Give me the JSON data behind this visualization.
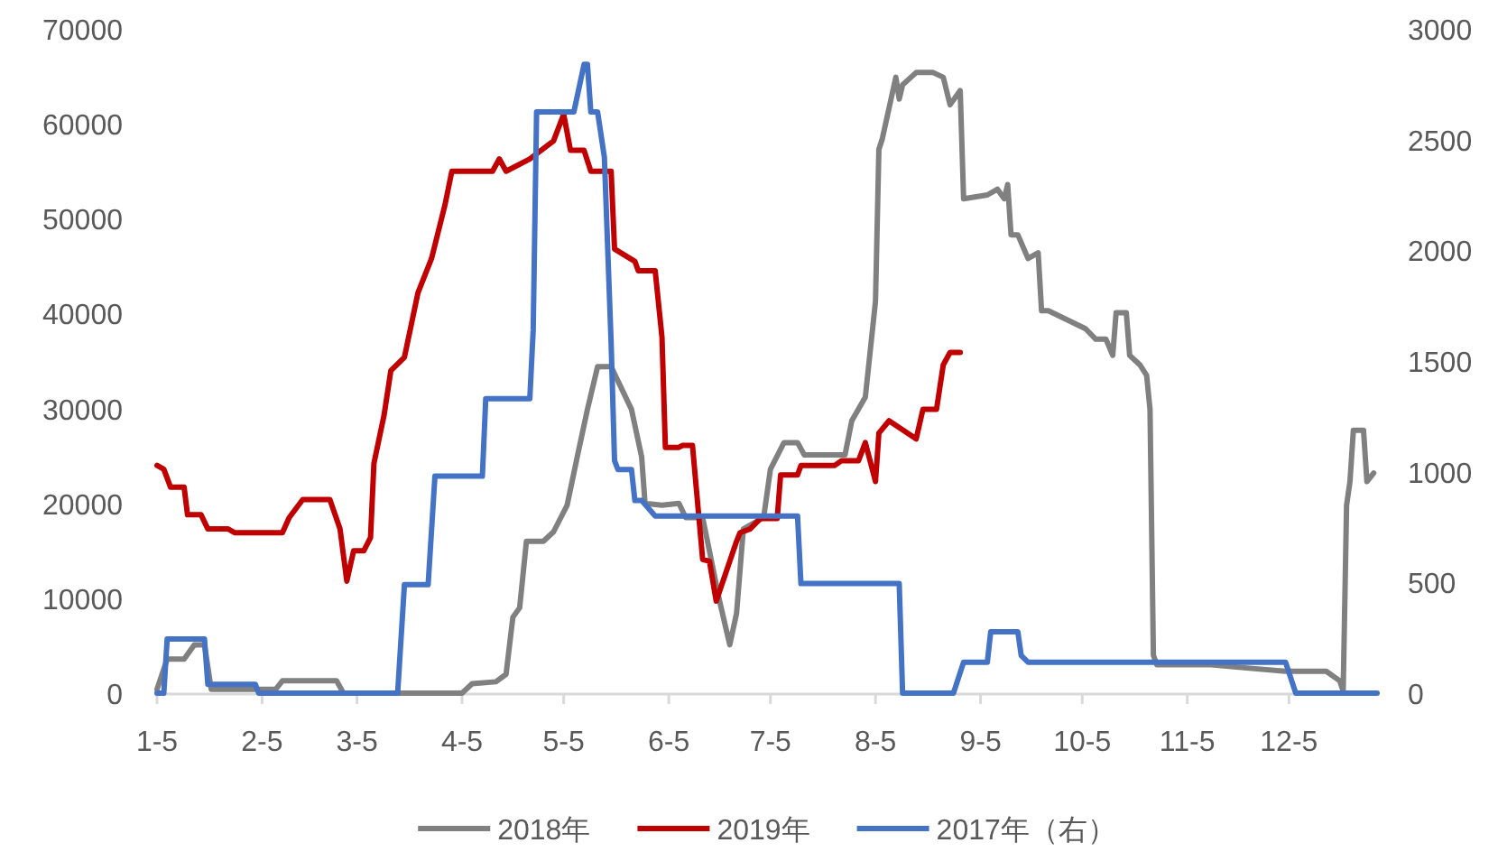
{
  "chart_data": {
    "type": "line",
    "legend": "bottom",
    "grid": false,
    "xlim": [
      "--01-05",
      "--12-31"
    ],
    "xticks": [
      {
        "value": "--01-05",
        "label": "1-5"
      },
      {
        "value": "--02-05",
        "label": "2-5"
      },
      {
        "value": "--03-05",
        "label": "3-5"
      },
      {
        "value": "--04-05",
        "label": "4-5"
      },
      {
        "value": "--05-05",
        "label": "5-5"
      },
      {
        "value": "--06-05",
        "label": "6-5"
      },
      {
        "value": "--07-05",
        "label": "7-5"
      },
      {
        "value": "--08-05",
        "label": "8-5"
      },
      {
        "value": "--09-05",
        "label": "9-5"
      },
      {
        "value": "--10-05",
        "label": "10-5"
      },
      {
        "value": "--11-05",
        "label": "11-5"
      },
      {
        "value": "--12-05",
        "label": "12-5"
      }
    ],
    "ylim": [
      0,
      70000
    ],
    "yticks": [
      0,
      10000,
      20000,
      30000,
      40000,
      50000,
      60000,
      70000
    ],
    "y2lim": [
      0,
      3000
    ],
    "y2ticks": [
      0,
      500,
      1000,
      1500,
      2000,
      2500,
      3000
    ],
    "series": [
      {
        "name": "2018年",
        "color": "#808080",
        "x": [
          "--01-05",
          "--01-08",
          "--01-13",
          "--01-16",
          "--01-19",
          "--01-21",
          "--02-09",
          "--02-11",
          "--02-27",
          "--03-01",
          "--04-05",
          "--04-08",
          "--04-15",
          "--04-18",
          "--04-20",
          "--04-22",
          "--04-24",
          "--04-29",
          "--05-02",
          "--05-06",
          "--05-09",
          "--05-12",
          "--05-15",
          "--05-19",
          "--05-25",
          "--05-28",
          "--05-29",
          "--06-03",
          "--06-08",
          "--06-10",
          "--06-15",
          "--06-20",
          "--06-23",
          "--06-25",
          "--06-27",
          "--07-03",
          "--07-05",
          "--07-09",
          "--07-13",
          "--07-15",
          "--07-27",
          "--07-29",
          "--08-02",
          "--08-05",
          "--08-06",
          "--08-07",
          "--08-11",
          "--08-12",
          "--08-13",
          "--08-17",
          "--08-22",
          "--08-25",
          "--08-27",
          "--08-30",
          "--08-31",
          "--09-07",
          "--09-10",
          "--09-12",
          "--09-13",
          "--09-14",
          "--09-16",
          "--09-19",
          "--09-22",
          "--09-23",
          "--09-25",
          "--10-06",
          "--10-09",
          "--10-12",
          "--10-14",
          "--10-15",
          "--10-18",
          "--10-19",
          "--10-22",
          "--10-24",
          "--10-25",
          "--10-26",
          "--10-27",
          "--11-12",
          "--11-21",
          "--12-04",
          "--12-16",
          "--12-20",
          "--12-21",
          "--12-22",
          "--12-23",
          "--12-24",
          "--12-27",
          "--12-28",
          "--12-30"
        ],
        "values": [
          400,
          3600,
          3600,
          5100,
          5100,
          400,
          400,
          1300,
          1300,
          0,
          0,
          1000,
          1200,
          2000,
          8000,
          9000,
          16000,
          16000,
          17000,
          19800,
          24900,
          29900,
          34400,
          34400,
          29900,
          24900,
          20000,
          19800,
          20000,
          18500,
          18500,
          9700,
          5100,
          8400,
          17300,
          18500,
          23600,
          26400,
          26400,
          25100,
          25100,
          28700,
          31200,
          41300,
          57300,
          58400,
          64900,
          62600,
          64100,
          65400,
          65400,
          64900,
          62000,
          63500,
          52100,
          52500,
          53100,
          52100,
          53600,
          48300,
          48300,
          45800,
          46400,
          40300,
          40300,
          38400,
          37300,
          37300,
          35600,
          40100,
          40100,
          35600,
          34600,
          33500,
          29900,
          4000,
          3000,
          3000,
          2700,
          2300,
          2300,
          1300,
          200,
          19800,
          22300,
          27700,
          27700,
          22300,
          23200
        ]
      },
      {
        "name": "2019年",
        "color": "#c00000",
        "x": [
          "--01-05",
          "--01-07",
          "--01-09",
          "--01-13",
          "--01-14",
          "--01-18",
          "--01-20",
          "--01-26",
          "--01-28",
          "--02-11",
          "--02-13",
          "--02-17",
          "--02-25",
          "--02-28",
          "--03-02",
          "--03-04",
          "--03-07",
          "--03-09",
          "--03-10",
          "--03-13",
          "--03-15",
          "--03-19",
          "--03-23",
          "--03-27",
          "--03-31",
          "--04-02",
          "--04-14",
          "--04-16",
          "--04-18",
          "--04-25",
          "--05-02",
          "--05-05",
          "--05-07",
          "--05-11",
          "--05-13",
          "--05-19",
          "--05-20",
          "--05-26",
          "--05-27",
          "--06-01",
          "--06-03",
          "--06-04",
          "--06-08",
          "--06-09",
          "--06-12",
          "--06-15",
          "--06-17",
          "--06-19",
          "--06-25",
          "--06-26",
          "--06-29",
          "--07-02",
          "--07-07",
          "--07-08",
          "--07-13",
          "--07-14",
          "--07-24",
          "--07-26",
          "--07-31",
          "--08-02",
          "--08-05",
          "--08-06",
          "--08-09",
          "--08-17",
          "--08-19",
          "--08-23",
          "--08-25",
          "--08-27",
          "--08-30"
        ],
        "values": [
          24000,
          23600,
          21700,
          21700,
          18800,
          18800,
          17300,
          17300,
          16900,
          16900,
          18500,
          20400,
          20400,
          17300,
          11800,
          15000,
          15000,
          16400,
          24200,
          29300,
          34000,
          35400,
          42200,
          45800,
          51500,
          55000,
          55000,
          56300,
          55000,
          56300,
          58200,
          61000,
          57200,
          57200,
          55000,
          55000,
          46800,
          45500,
          44500,
          44500,
          37500,
          25900,
          25900,
          26100,
          26100,
          14100,
          13900,
          9700,
          16000,
          16900,
          17300,
          18400,
          18400,
          23000,
          23000,
          24000,
          24000,
          24500,
          24500,
          26400,
          22300,
          27400,
          28700,
          26800,
          29900,
          29900,
          34600,
          35900,
          35900
        ]
      },
      {
        "name": "2017年（右）",
        "color": "#4472c4",
        "axis": "y2",
        "x": [
          "--01-05",
          "--01-07",
          "--01-08",
          "--01-19",
          "--01-20",
          "--02-03",
          "--02-04",
          "--03-17",
          "--03-19",
          "--03-26",
          "--03-28",
          "--04-11",
          "--04-12",
          "--04-25",
          "--04-26",
          "--04-27",
          "--05-08",
          "--05-11",
          "--05-12",
          "--05-13",
          "--05-15",
          "--05-17",
          "--05-19",
          "--05-20",
          "--05-21",
          "--05-25",
          "--05-26",
          "--05-28",
          "--06-01",
          "--07-13",
          "--07-14",
          "--08-12",
          "--08-13",
          "--08-28",
          "--08-31",
          "--09-07",
          "--09-08",
          "--09-16",
          "--09-17",
          "--09-19",
          "--12-04",
          "--12-07",
          "--12-31"
        ],
        "values": [
          0,
          0,
          245,
          245,
          40,
          40,
          0,
          0,
          490,
          490,
          980,
          980,
          1330,
          1330,
          1640,
          2625,
          2625,
          2840,
          2840,
          2625,
          2625,
          2420,
          1580,
          1050,
          1010,
          1010,
          870,
          870,
          800,
          800,
          495,
          495,
          0,
          0,
          140,
          140,
          277,
          277,
          170,
          140,
          140,
          0,
          0
        ]
      }
    ]
  }
}
